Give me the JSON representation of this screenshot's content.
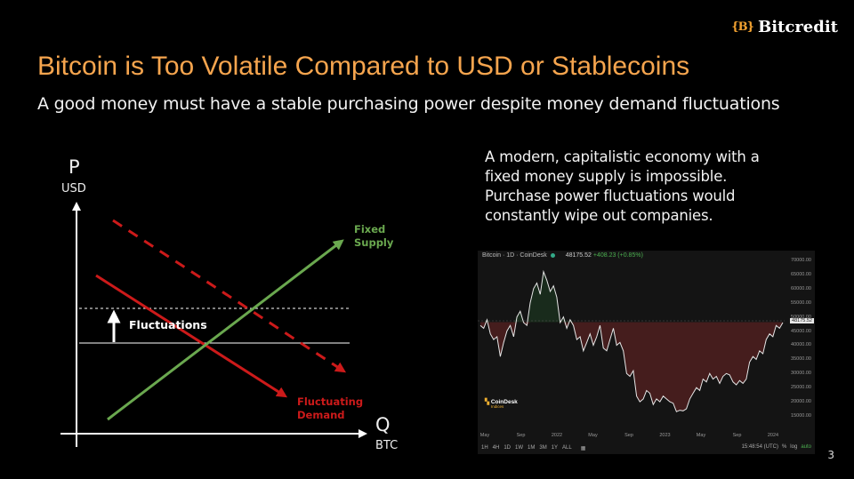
{
  "brand": {
    "mark": "{B}",
    "name": "Bitcredit"
  },
  "slide": {
    "title": "Bitcoin is Too Volatile Compared to USD or Stablecoins",
    "subtitle": "A good money must have a stable purchasing power despite money demand fluctuations",
    "note": "A modern, capitalistic economy with a fixed money supply is impossible. Purchase power fluctuations would constantly wipe out companies.",
    "page_number": "3"
  },
  "diagram": {
    "y_axis": {
      "letter": "P",
      "unit": "USD"
    },
    "x_axis": {
      "letter": "Q",
      "unit": "BTC"
    },
    "supply_label": [
      "Fixed",
      "Supply"
    ],
    "demand_label": [
      "Fluctuating",
      "Demand"
    ],
    "shift_label": "Fluctuations",
    "colors": {
      "supply": "#6aa84f",
      "demand": "#cc1a1a",
      "axis": "#ffffff"
    }
  },
  "price_chart": {
    "header": {
      "title": "Bitcoin · 1D · CoinDesk",
      "price": "48175.52",
      "change": "+408.23 (+0.85%)"
    },
    "current_price_tag": "48175.52",
    "y_ticks": [
      "70000.00",
      "65000.00",
      "60000.00",
      "55000.00",
      "50000.00",
      "45000.00",
      "40000.00",
      "35000.00",
      "30000.00",
      "25000.00",
      "20000.00",
      "15000.00"
    ],
    "x_ticks": [
      "May",
      "Sep",
      "2022",
      "May",
      "Sep",
      "2023",
      "May",
      "Sep",
      "2024"
    ],
    "watermark": {
      "name": "CoinDesk",
      "sub": "Indices"
    },
    "timeframes": [
      "1H",
      "4H",
      "1D",
      "1W",
      "1M",
      "3M",
      "1Y",
      "ALL"
    ],
    "footer": {
      "time": "15:48:54 (UTC)",
      "percent": "%",
      "log": "log",
      "auto": "auto"
    },
    "colors": {
      "line": "#e6e6e6",
      "loss_fill": "#4a1e1e",
      "gain_fill": "#1d3a22"
    },
    "series": [
      47000,
      46000,
      49000,
      44000,
      42000,
      43000,
      36000,
      41000,
      45000,
      47000,
      43000,
      50000,
      52000,
      48000,
      47000,
      55000,
      60000,
      62000,
      58000,
      66000,
      63000,
      59000,
      61000,
      57000,
      48000,
      50000,
      46000,
      49000,
      47000,
      42000,
      43000,
      38000,
      41000,
      44000,
      40000,
      43000,
      47000,
      39000,
      38000,
      42000,
      46000,
      40000,
      41000,
      38000,
      30000,
      29000,
      31000,
      22000,
      20000,
      21000,
      24000,
      23000,
      19000,
      21000,
      20000,
      22000,
      21000,
      20000,
      19500,
      16500,
      17000,
      16800,
      17500,
      21000,
      23000,
      25000,
      24000,
      28000,
      27000,
      30000,
      28000,
      29000,
      26500,
      29000,
      30000,
      29500,
      27000,
      26000,
      27500,
      26500,
      28000,
      34000,
      36000,
      35000,
      38000,
      37000,
      42000,
      44000,
      43000,
      47000,
      46000,
      48000
    ]
  }
}
